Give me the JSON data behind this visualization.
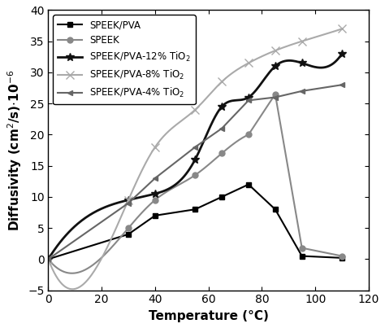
{
  "title": "",
  "xlabel": "Temperature (°C)",
  "xlim": [
    0,
    120
  ],
  "ylim": [
    -5,
    40
  ],
  "xticks": [
    0,
    20,
    40,
    60,
    80,
    100,
    120
  ],
  "yticks": [
    -5,
    0,
    5,
    10,
    15,
    20,
    25,
    30,
    35,
    40
  ],
  "series": [
    {
      "label": "SPEEK/PVA",
      "color": "#000000",
      "marker": "s",
      "marker_size": 5,
      "linewidth": 1.5,
      "x": [
        0,
        30,
        40,
        55,
        65,
        75,
        85,
        95,
        110
      ],
      "y": [
        0,
        4.0,
        7.0,
        8.0,
        10.0,
        12.0,
        8.0,
        0.5,
        0.2
      ]
    },
    {
      "label": "SPEEK",
      "color": "#888888",
      "marker": "o",
      "marker_size": 5,
      "linewidth": 1.5,
      "x": [
        0,
        30,
        40,
        55,
        65,
        75,
        85,
        95,
        110
      ],
      "y": [
        0,
        5.0,
        9.5,
        13.5,
        17.0,
        20.0,
        26.5,
        1.8,
        0.5
      ]
    },
    {
      "label": "SPEEK/PVA-12% TiO$_2$",
      "color": "#111111",
      "marker": "*",
      "marker_size": 7,
      "linewidth": 2.0,
      "x": [
        0,
        30,
        40,
        55,
        65,
        75,
        85,
        95,
        110
      ],
      "y": [
        0,
        9.5,
        10.5,
        16.0,
        24.5,
        26.0,
        31.0,
        31.5,
        33.0
      ]
    },
    {
      "label": "SPEEK/PVA-8% TiO$_2$",
      "color": "#aaaaaa",
      "marker": "x",
      "marker_size": 7,
      "linewidth": 1.5,
      "x": [
        0,
        30,
        40,
        55,
        65,
        75,
        85,
        95,
        110
      ],
      "y": [
        0,
        9.5,
        18.0,
        24.0,
        28.5,
        31.5,
        33.5,
        35.0,
        37.0
      ]
    },
    {
      "label": "SPEEK/PVA-4% TiO$_2$",
      "color": "#666666",
      "marker": "<",
      "marker_size": 5,
      "linewidth": 1.5,
      "x": [
        0,
        30,
        40,
        55,
        65,
        75,
        85,
        95,
        110
      ],
      "y": [
        0,
        9.0,
        13.0,
        18.0,
        21.0,
        25.5,
        26.0,
        27.0,
        28.0
      ]
    }
  ],
  "legend_loc": "upper left",
  "legend_fontsize": 8.5,
  "axis_fontsize": 11,
  "tick_fontsize": 10,
  "figure_facecolor": "#ffffff"
}
